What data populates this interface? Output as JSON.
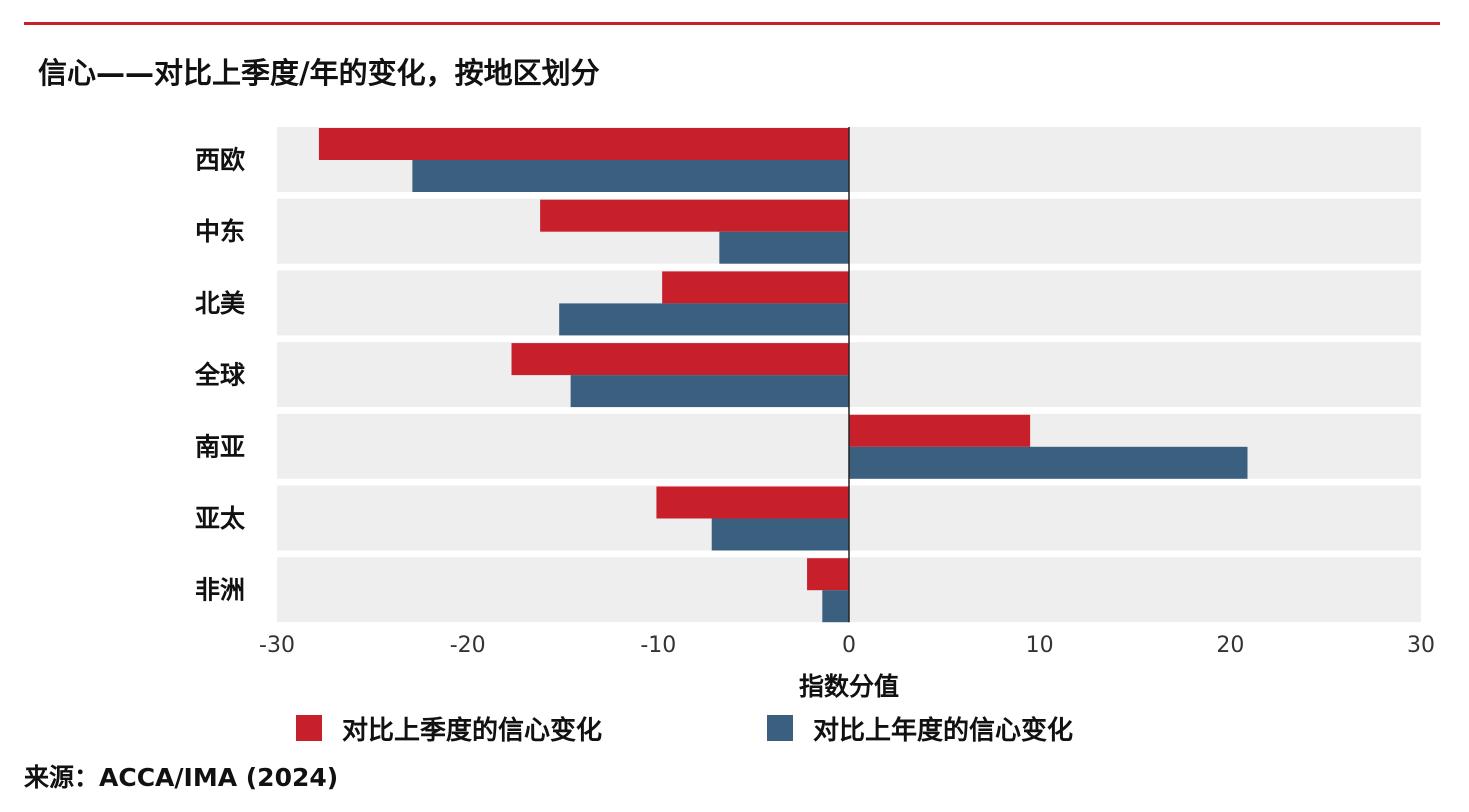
{
  "title": "信心——对比上季度/年的变化，按地区划分",
  "source": "来源：ACCA/IMA (2024)",
  "colors": {
    "rule": "#c8202a",
    "series_quarter": "#c8202a",
    "series_year": "#3a5f7f",
    "band": "#eeeeee"
  },
  "chart_data": {
    "type": "bar",
    "orientation": "horizontal",
    "categories": [
      "西欧",
      "中东",
      "北美",
      "全球",
      "南亚",
      "亚太",
      "非洲"
    ],
    "series": [
      {
        "name": "对比上季度的信心变化",
        "values": [
          -27.8,
          -16.2,
          -9.8,
          -17.7,
          9.5,
          -10.1,
          -2.2
        ]
      },
      {
        "name": "对比上年度的信心变化",
        "values": [
          -22.9,
          -6.8,
          -15.2,
          -14.6,
          20.9,
          -7.2,
          -1.4
        ]
      }
    ],
    "xlabel": "指数分值",
    "xlim": [
      -30,
      30
    ],
    "xticks": [
      -30,
      -20,
      -10,
      0,
      10,
      20,
      30
    ],
    "xtick_labels": [
      "-30",
      "-20",
      "-10",
      "0",
      "10",
      "20",
      "30"
    ],
    "legend_position": "bottom",
    "grid": false
  }
}
